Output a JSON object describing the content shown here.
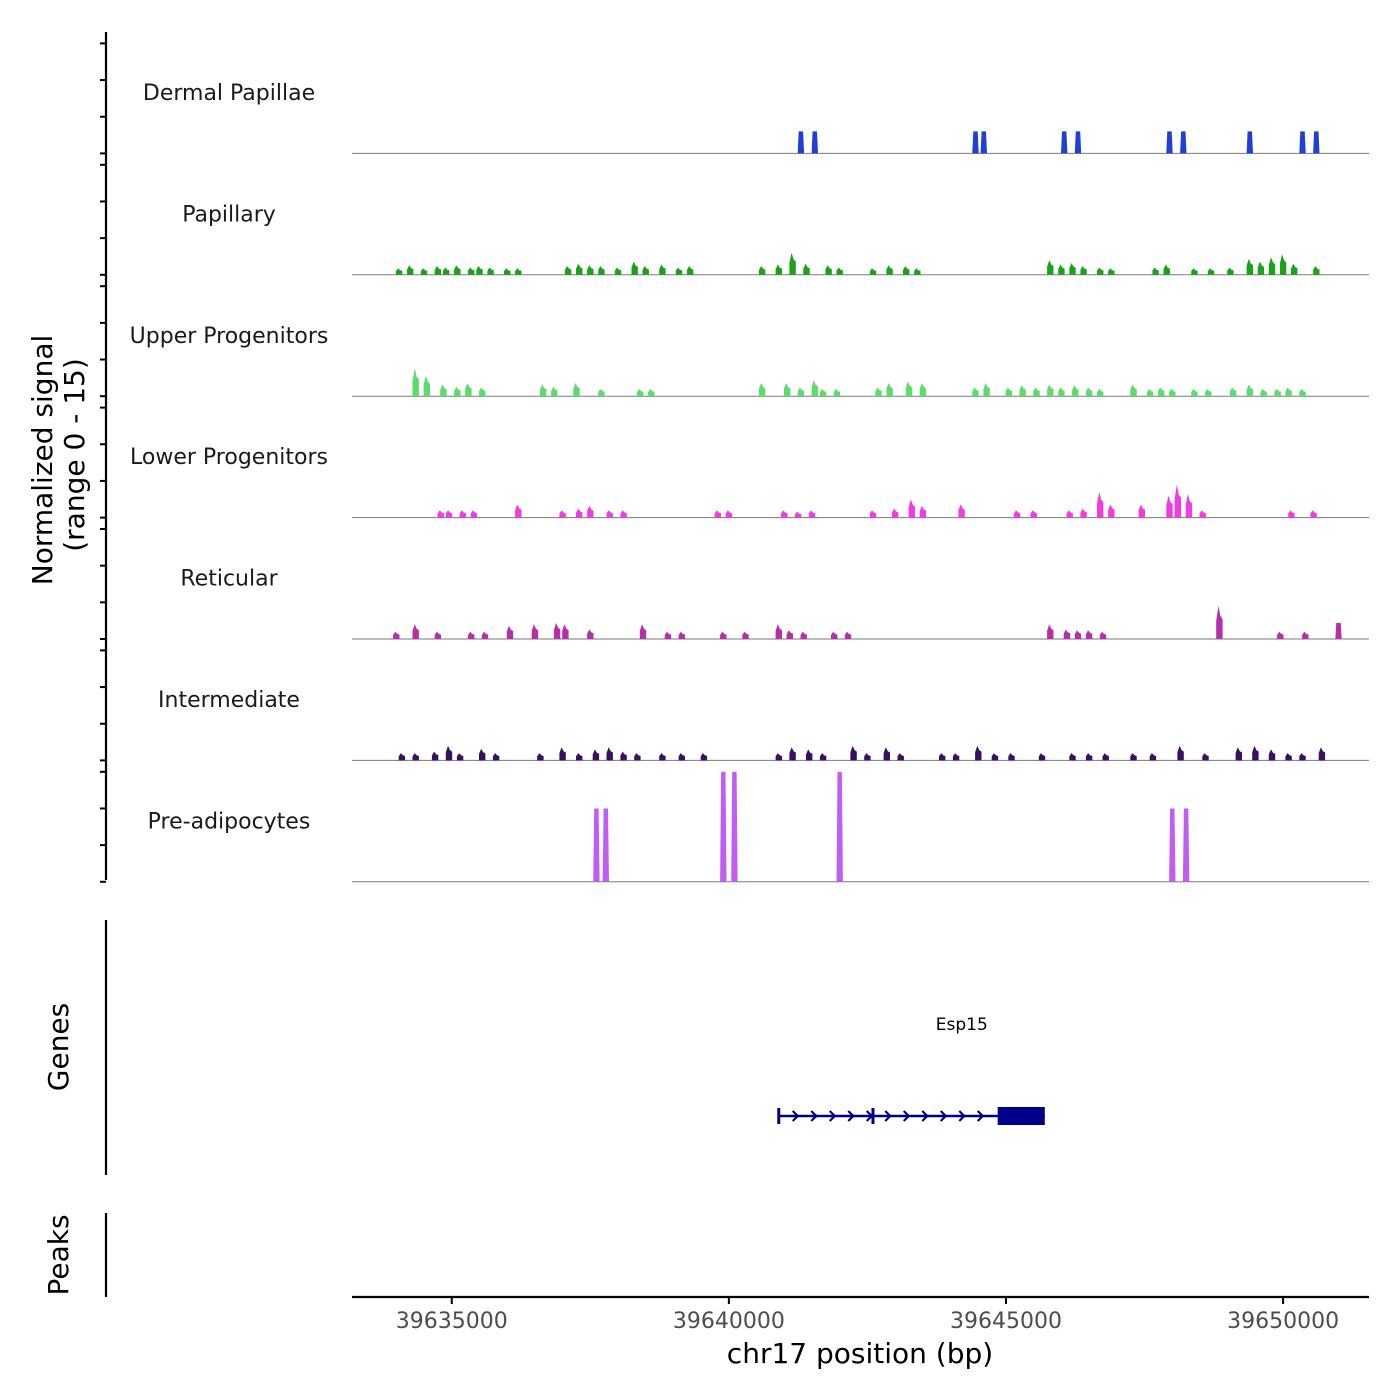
{
  "chart_data": {
    "type": "area",
    "chromosome": "chr17",
    "x_range": [
      39633200,
      39651550
    ],
    "xlabel": "chr17 position (bp)",
    "x_ticks": [
      {
        "value": 39635000,
        "label": "39635000"
      },
      {
        "value": 39640000,
        "label": "39640000"
      },
      {
        "value": 39645000,
        "label": "39645000"
      },
      {
        "value": 39650000,
        "label": "39650000"
      }
    ],
    "signal_ylabel_line1": "Normalized signal",
    "signal_ylabel_line2": "(range 0 - 15)",
    "genes_ylabel": "Genes",
    "peaks_ylabel": "Peaks",
    "ylim": [
      0,
      15
    ],
    "tracks": [
      {
        "name": "Dermal Papillae",
        "color": "#1f3fd6",
        "peaks": [
          [
            39641300,
            3,
            0
          ],
          [
            39641550,
            3,
            0
          ],
          [
            39644450,
            3,
            0
          ],
          [
            39644600,
            3,
            0
          ],
          [
            39646050,
            3,
            0
          ],
          [
            39646300,
            3,
            0
          ],
          [
            39647950,
            3,
            0
          ],
          [
            39648200,
            3,
            0
          ],
          [
            39649400,
            3,
            0
          ],
          [
            39650350,
            3,
            0
          ],
          [
            39650600,
            3,
            0
          ]
        ]
      },
      {
        "name": "Papillary",
        "color": "#1aa31a",
        "peaks": [
          [
            39634050,
            0.9,
            1
          ],
          [
            39634250,
            1.3,
            1
          ],
          [
            39634500,
            0.9,
            1
          ],
          [
            39634750,
            1.2,
            1
          ],
          [
            39634900,
            1,
            1
          ],
          [
            39635100,
            1.3,
            1
          ],
          [
            39635350,
            1,
            1
          ],
          [
            39635500,
            1.2,
            1
          ],
          [
            39635700,
            1,
            1
          ],
          [
            39636000,
            0.9,
            1
          ],
          [
            39636200,
            0.9,
            1
          ],
          [
            39637100,
            1.2,
            1
          ],
          [
            39637300,
            1.5,
            1
          ],
          [
            39637500,
            1.3,
            1
          ],
          [
            39637700,
            1.2,
            1
          ],
          [
            39638000,
            1,
            1
          ],
          [
            39638300,
            1.8,
            1
          ],
          [
            39638500,
            1.2,
            1
          ],
          [
            39638800,
            1.4,
            1
          ],
          [
            39639100,
            1,
            1
          ],
          [
            39639300,
            1.2,
            1
          ],
          [
            39640600,
            1.2,
            1
          ],
          [
            39640900,
            1.4,
            1
          ],
          [
            39641150,
            3,
            1
          ],
          [
            39641400,
            1.5,
            1
          ],
          [
            39641800,
            1.3,
            1
          ],
          [
            39642000,
            1,
            1
          ],
          [
            39642600,
            0.9,
            1
          ],
          [
            39642900,
            1.3,
            1
          ],
          [
            39643200,
            1.2,
            1
          ],
          [
            39643400,
            0.9,
            1
          ],
          [
            39645800,
            2,
            1
          ],
          [
            39646000,
            1.4,
            1
          ],
          [
            39646200,
            1.6,
            1
          ],
          [
            39646400,
            1.2,
            1
          ],
          [
            39646700,
            1,
            1
          ],
          [
            39646900,
            0.9,
            1
          ],
          [
            39647700,
            1,
            1
          ],
          [
            39647900,
            1.4,
            1
          ],
          [
            39648400,
            0.9,
            1
          ],
          [
            39648700,
            0.9,
            1
          ],
          [
            39649050,
            1,
            1
          ],
          [
            39649400,
            2.2,
            1
          ],
          [
            39649600,
            1.8,
            1
          ],
          [
            39649800,
            2.4,
            1
          ],
          [
            39650000,
            2.8,
            1
          ],
          [
            39650200,
            1.5,
            1
          ],
          [
            39650600,
            1.2,
            1
          ]
        ]
      },
      {
        "name": "Upper Progenitors",
        "color": "#5ddc6d",
        "peaks": [
          [
            39634350,
            3.8,
            1
          ],
          [
            39634550,
            2.8,
            1
          ],
          [
            39634850,
            1.6,
            1
          ],
          [
            39635100,
            1.3,
            1
          ],
          [
            39635300,
            1.8,
            1
          ],
          [
            39635550,
            1.2,
            1
          ],
          [
            39636650,
            1.6,
            1
          ],
          [
            39636850,
            1.3,
            1
          ],
          [
            39637250,
            1.8,
            1
          ],
          [
            39637700,
            1,
            1
          ],
          [
            39638400,
            1,
            1
          ],
          [
            39638600,
            1,
            1
          ],
          [
            39640600,
            1.8,
            1
          ],
          [
            39641050,
            1.8,
            1
          ],
          [
            39641300,
            1.2,
            1
          ],
          [
            39641550,
            2.2,
            1
          ],
          [
            39641700,
            1,
            1
          ],
          [
            39641950,
            1,
            1
          ],
          [
            39642700,
            1.2,
            1
          ],
          [
            39642900,
            1.8,
            1
          ],
          [
            39643250,
            2,
            1
          ],
          [
            39643500,
            1.8,
            1
          ],
          [
            39644450,
            1.2,
            1
          ],
          [
            39644650,
            1.8,
            1
          ],
          [
            39645050,
            1.2,
            1
          ],
          [
            39645300,
            1.5,
            1
          ],
          [
            39645550,
            1.2,
            1
          ],
          [
            39645800,
            1.6,
            1
          ],
          [
            39646000,
            1.2,
            1
          ],
          [
            39646250,
            1.5,
            1
          ],
          [
            39646500,
            1.2,
            1
          ],
          [
            39646700,
            1,
            1
          ],
          [
            39647300,
            1.6,
            1
          ],
          [
            39647600,
            1,
            1
          ],
          [
            39647800,
            1.2,
            1
          ],
          [
            39648000,
            1,
            1
          ],
          [
            39648400,
            1,
            1
          ],
          [
            39648650,
            1,
            1
          ],
          [
            39649100,
            1.2,
            1
          ],
          [
            39649400,
            1.6,
            1
          ],
          [
            39649650,
            1,
            1
          ],
          [
            39649900,
            1,
            1
          ],
          [
            39650100,
            1.2,
            1
          ],
          [
            39650350,
            1,
            1
          ]
        ]
      },
      {
        "name": "Lower Progenitors",
        "color": "#f03ce0",
        "peaks": [
          [
            39634800,
            1,
            1
          ],
          [
            39634950,
            1,
            1
          ],
          [
            39635200,
            1,
            1
          ],
          [
            39635400,
            1,
            1
          ],
          [
            39636200,
            1.8,
            1
          ],
          [
            39637000,
            1,
            1
          ],
          [
            39637300,
            1.2,
            1
          ],
          [
            39637500,
            1.6,
            1
          ],
          [
            39637850,
            1,
            1
          ],
          [
            39638100,
            1,
            1
          ],
          [
            39639800,
            1,
            1
          ],
          [
            39640000,
            1,
            1
          ],
          [
            39641000,
            1,
            1
          ],
          [
            39641250,
            0.8,
            1
          ],
          [
            39641500,
            1,
            1
          ],
          [
            39642600,
            1,
            1
          ],
          [
            39643000,
            1.2,
            1
          ],
          [
            39643300,
            2.5,
            1
          ],
          [
            39643500,
            1.6,
            1
          ],
          [
            39644200,
            1.8,
            1
          ],
          [
            39645200,
            1,
            1
          ],
          [
            39645500,
            1,
            1
          ],
          [
            39646150,
            1,
            1
          ],
          [
            39646400,
            1.2,
            1
          ],
          [
            39646700,
            3.5,
            1
          ],
          [
            39646900,
            1.8,
            1
          ],
          [
            39647450,
            1.8,
            1
          ],
          [
            39647950,
            3,
            1
          ],
          [
            39648100,
            4.5,
            1
          ],
          [
            39648300,
            3.2,
            1
          ],
          [
            39648550,
            1,
            1
          ],
          [
            39650150,
            1,
            1
          ],
          [
            39650550,
            1,
            1
          ]
        ]
      },
      {
        "name": "Reticular",
        "color": "#b42fa8",
        "peaks": [
          [
            39634000,
            1,
            1
          ],
          [
            39634350,
            2,
            1
          ],
          [
            39634750,
            1,
            1
          ],
          [
            39635350,
            1,
            1
          ],
          [
            39635600,
            1,
            1
          ],
          [
            39636050,
            1.8,
            1
          ],
          [
            39636500,
            2,
            1
          ],
          [
            39636900,
            2.2,
            1
          ],
          [
            39637050,
            2,
            1
          ],
          [
            39637500,
            1.3,
            1
          ],
          [
            39638450,
            2,
            1
          ],
          [
            39638900,
            1,
            1
          ],
          [
            39639150,
            1,
            1
          ],
          [
            39639900,
            1,
            1
          ],
          [
            39640300,
            1,
            1
          ],
          [
            39640900,
            2,
            1
          ],
          [
            39641100,
            1.2,
            1
          ],
          [
            39641350,
            1,
            1
          ],
          [
            39641900,
            1,
            1
          ],
          [
            39642150,
            1,
            1
          ],
          [
            39645800,
            2,
            1
          ],
          [
            39646100,
            1.3,
            1
          ],
          [
            39646300,
            1.2,
            1
          ],
          [
            39646500,
            1.2,
            1
          ],
          [
            39646750,
            1,
            1
          ],
          [
            39648850,
            4.5,
            1
          ],
          [
            39649950,
            1,
            1
          ],
          [
            39650400,
            1,
            1
          ],
          [
            39651000,
            2.2,
            0
          ]
        ]
      },
      {
        "name": "Intermediate",
        "color": "#3a0f62",
        "peaks": [
          [
            39634100,
            1,
            1
          ],
          [
            39634350,
            1,
            1
          ],
          [
            39634700,
            1.2,
            1
          ],
          [
            39634950,
            2,
            1
          ],
          [
            39635150,
            1,
            1
          ],
          [
            39635550,
            1.6,
            1
          ],
          [
            39635800,
            1,
            1
          ],
          [
            39636600,
            1,
            1
          ],
          [
            39637000,
            1.8,
            1
          ],
          [
            39637300,
            1,
            1
          ],
          [
            39637600,
            1.5,
            1
          ],
          [
            39637850,
            1.8,
            1
          ],
          [
            39638100,
            1.2,
            1
          ],
          [
            39638350,
            1,
            1
          ],
          [
            39638800,
            1,
            1
          ],
          [
            39639150,
            1,
            1
          ],
          [
            39639550,
            1,
            1
          ],
          [
            39640900,
            1,
            1
          ],
          [
            39641150,
            1.8,
            1
          ],
          [
            39641450,
            1.5,
            1
          ],
          [
            39641700,
            1,
            1
          ],
          [
            39642250,
            2,
            1
          ],
          [
            39642500,
            1,
            1
          ],
          [
            39642850,
            1.8,
            1
          ],
          [
            39643100,
            1,
            1
          ],
          [
            39643850,
            1,
            1
          ],
          [
            39644100,
            1,
            1
          ],
          [
            39644500,
            2,
            1
          ],
          [
            39644800,
            1,
            1
          ],
          [
            39645100,
            1,
            1
          ],
          [
            39645650,
            1,
            1
          ],
          [
            39646200,
            1,
            1
          ],
          [
            39646500,
            1,
            1
          ],
          [
            39646800,
            1,
            1
          ],
          [
            39647300,
            1,
            1
          ],
          [
            39647650,
            1,
            1
          ],
          [
            39648150,
            2,
            1
          ],
          [
            39648600,
            1,
            1
          ],
          [
            39649200,
            1.8,
            1
          ],
          [
            39649500,
            2,
            1
          ],
          [
            39649800,
            1.5,
            1
          ],
          [
            39650100,
            1,
            1
          ],
          [
            39650350,
            1,
            1
          ],
          [
            39650700,
            1.8,
            1
          ]
        ]
      },
      {
        "name": "Pre-adipocytes",
        "color": "#c15cf5",
        "peaks": [
          [
            39637610,
            10,
            0
          ],
          [
            39637780,
            10,
            0
          ],
          [
            39639900,
            15,
            0
          ],
          [
            39640100,
            15,
            0
          ],
          [
            39642000,
            15,
            0
          ],
          [
            39648000,
            10,
            0
          ],
          [
            39648250,
            10,
            0
          ]
        ]
      }
    ],
    "genes": [
      {
        "name": "Esp15",
        "start": 39640900,
        "end": 39645700,
        "exon_start": 39644850,
        "exon_end": 39645700,
        "strand": "+",
        "color": "#00008b"
      }
    ],
    "peaks_track": []
  }
}
